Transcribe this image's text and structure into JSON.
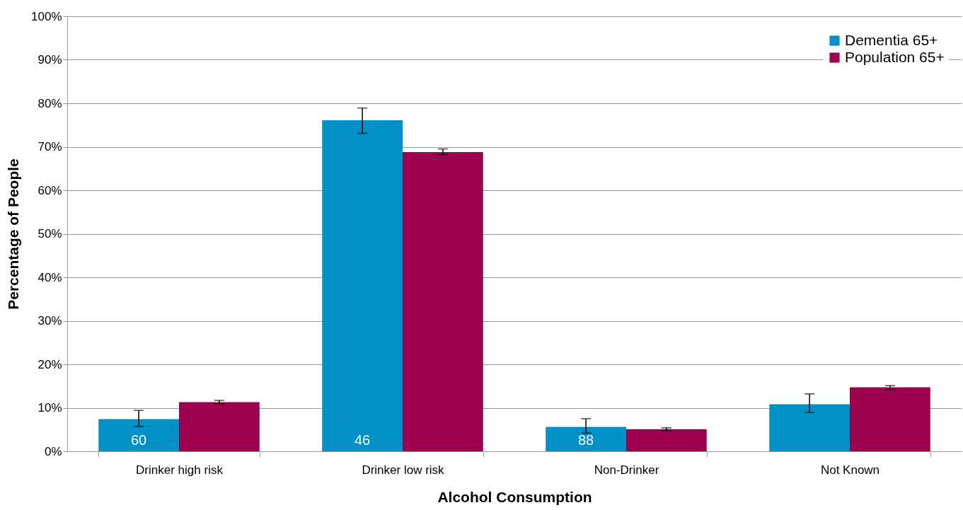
{
  "chart_data": {
    "type": "bar",
    "xlabel": "Alcohol Consumption",
    "ylabel": "Percentage of People",
    "categories": [
      "Drinker high risk",
      "Drinker low risk",
      "Non-Drinker",
      "Not Known"
    ],
    "series": [
      {
        "name": "Dementia 65+",
        "color": "#0191c8",
        "values": [
          7.4,
          76.1,
          5.6,
          10.8
        ],
        "errors": [
          [
            5.7,
            9.4
          ],
          [
            73.1,
            78.9
          ],
          [
            4.2,
            7.5
          ],
          [
            8.9,
            13.2
          ]
        ]
      },
      {
        "name": "Population 65+",
        "color": "#9e0050",
        "values": [
          11.3,
          68.8,
          5.1,
          14.7
        ],
        "errors": [
          [
            10.9,
            11.7
          ],
          [
            68.2,
            69.5
          ],
          [
            4.8,
            5.4
          ],
          [
            14.2,
            15.1
          ]
        ]
      }
    ],
    "ylim": [
      0,
      100
    ],
    "yticks": [
      {
        "value": 0,
        "label": "0%"
      },
      {
        "value": 10,
        "label": "10%"
      },
      {
        "value": 20,
        "label": "20%"
      },
      {
        "value": 30,
        "label": "30%"
      },
      {
        "value": 40,
        "label": "40%"
      },
      {
        "value": 50,
        "label": "50%"
      },
      {
        "value": 60,
        "label": "60%"
      },
      {
        "value": 70,
        "label": "70%"
      },
      {
        "value": 80,
        "label": "80%"
      },
      {
        "value": 90,
        "label": "90%"
      },
      {
        "value": 100,
        "label": "100%"
      }
    ],
    "annotations": [
      {
        "text": "60",
        "x": "Drinker high risk",
        "y": 2.5
      },
      {
        "text": "46",
        "x": "Drinker low risk",
        "y": 2.5
      },
      {
        "text": "88",
        "x": "Non-Drinker",
        "y": 2.5
      }
    ],
    "grid": "y",
    "legend": "top right"
  }
}
